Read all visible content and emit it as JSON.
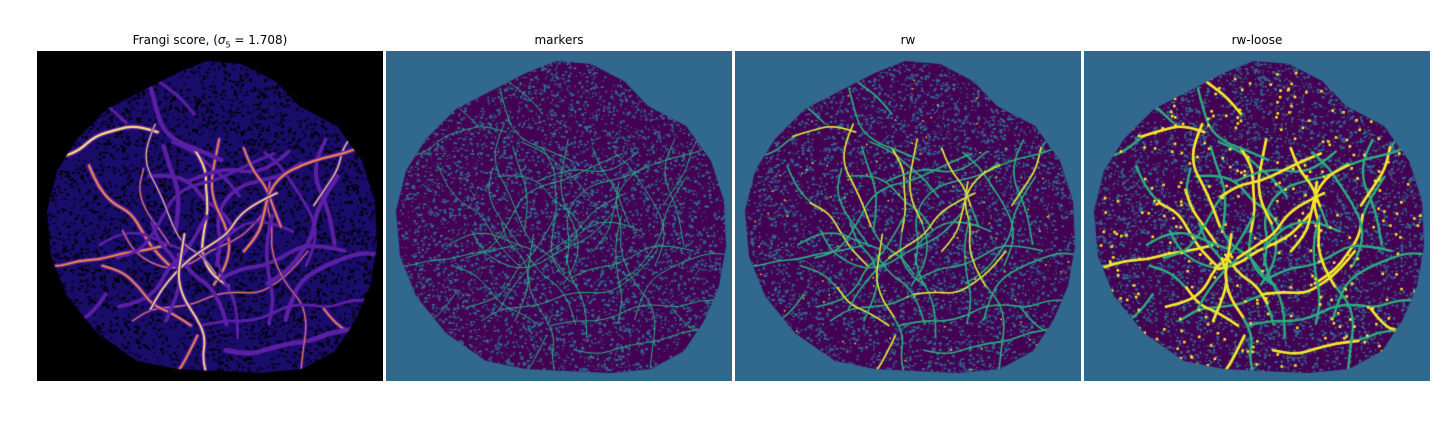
{
  "panels": [
    {
      "id": "frangi",
      "title_prefix": "Frangi score, (",
      "sigma_symbol": "σ",
      "sigma_subscript": "5",
      "sigma_suffix": " = 1.708)",
      "colors": {
        "background": "#000000",
        "tissue": "#1a0c6a",
        "vessel_low": "#5b1fa6",
        "vessel_high": "#f58b3f",
        "vessel_peak": "#fbe27a"
      }
    },
    {
      "id": "markers",
      "title": "markers",
      "colors": {
        "background": "#31688e",
        "tissue": "#440154",
        "vessel": "#2ab07f"
      }
    },
    {
      "id": "rw",
      "title": "rw",
      "colors": {
        "background": "#31688e",
        "tissue": "#440154",
        "vessel": "#2ab07f",
        "highlight": "#fde725"
      }
    },
    {
      "id": "rw-loose",
      "title": "rw-loose",
      "colors": {
        "background": "#31688e",
        "tissue": "#440154",
        "vessel": "#2ab07f",
        "highlight": "#fde725"
      }
    }
  ]
}
